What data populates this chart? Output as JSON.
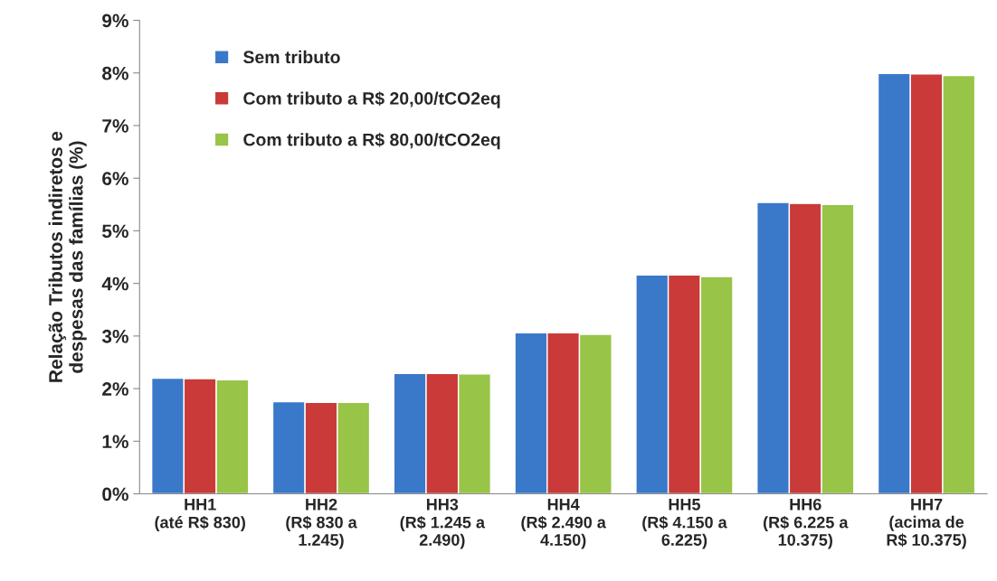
{
  "chart_data": {
    "type": "bar",
    "ylabel": "Relação Tributos indiretos e\ndespesas das famílias (%)",
    "categories": [
      "HH1\n(até R$ 830)",
      "HH2\n(R$ 830 a\n1.245)",
      "HH3\n(R$ 1.245 a\n2.490)",
      "HH4\n(R$ 2.490 a\n4.150)",
      "HH5\n(R$ 4.150 a\n6.225)",
      "HH6\n(R$ 6.225 a\n10.375)",
      "HH7\n(acima de\nR$ 10.375)"
    ],
    "series": [
      {
        "name": "Sem tributo",
        "color": "#3a78c9",
        "values": [
          2.2,
          1.75,
          2.29,
          3.06,
          4.16,
          5.54,
          7.99
        ]
      },
      {
        "name": "Com tributo a R$ 20,00/tCO2eq",
        "color": "#c93a38",
        "values": [
          2.19,
          1.74,
          2.29,
          3.06,
          4.16,
          5.52,
          7.98
        ]
      },
      {
        "name": "Com tributo a R$ 80,00/tCO2eq",
        "color": "#98c447",
        "values": [
          2.17,
          1.74,
          2.28,
          3.03,
          4.13,
          5.5,
          7.95
        ]
      }
    ],
    "ylim": [
      0,
      9
    ],
    "yticks": [
      {
        "value": 0,
        "label": "0%"
      },
      {
        "value": 1,
        "label": "1%"
      },
      {
        "value": 2,
        "label": "2%"
      },
      {
        "value": 3,
        "label": "3%"
      },
      {
        "value": 4,
        "label": "4%"
      },
      {
        "value": 5,
        "label": "5%"
      },
      {
        "value": 6,
        "label": "6%"
      },
      {
        "value": 7,
        "label": "7%"
      },
      {
        "value": 8,
        "label": "8%"
      },
      {
        "value": 9,
        "label": "9%"
      }
    ],
    "grid": false,
    "legend": "top left"
  }
}
